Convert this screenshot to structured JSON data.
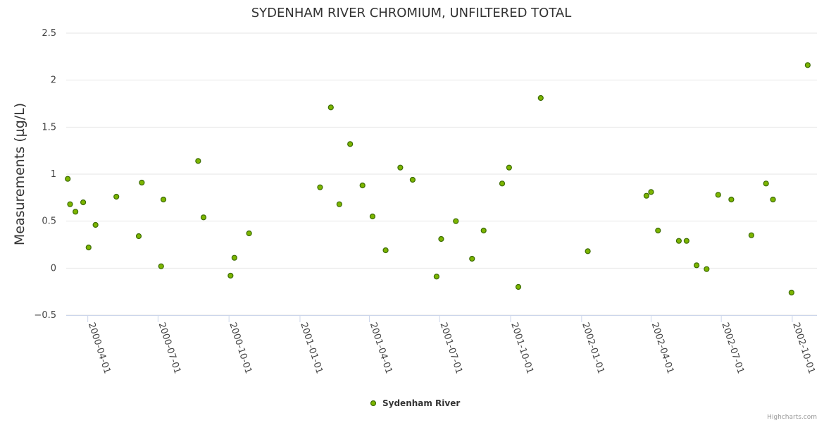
{
  "chart_data": {
    "type": "scatter",
    "title": "SYDENHAM RIVER CHROMIUM, UNFILTERED TOTAL",
    "ylabel": "Measurements (µg/L)",
    "xlabel": "",
    "ylim": [
      -0.5,
      2.5
    ],
    "yticks": [
      -0.5,
      0,
      0.5,
      1,
      1.5,
      2,
      2.5
    ],
    "ytick_labels": [
      "−0.5",
      "0",
      "0.5",
      "1",
      "1.5",
      "2",
      "2.5"
    ],
    "xlim": [
      "2000-03-04",
      "2002-11-02"
    ],
    "xticks": [
      "2000-04-01",
      "2000-07-01",
      "2000-10-01",
      "2001-01-01",
      "2001-04-01",
      "2001-07-01",
      "2001-10-01",
      "2002-01-01",
      "2002-04-01",
      "2002-07-01",
      "2002-10-01"
    ],
    "grid": "horizontal",
    "legend_position": "bottom-center",
    "colors": {
      "marker_fill": "#7cb500",
      "marker_stroke": "#3b6b00",
      "grid": "#e6e6e6",
      "axis": "#ccd6eb"
    },
    "series": [
      {
        "name": "Sydenham River",
        "points": [
          [
            "2000-03-06",
            0.95
          ],
          [
            "2000-03-09",
            0.68
          ],
          [
            "2000-03-16",
            0.6
          ],
          [
            "2000-03-26",
            0.7
          ],
          [
            "2000-04-02",
            0.22
          ],
          [
            "2000-04-11",
            0.46
          ],
          [
            "2000-05-08",
            0.76
          ],
          [
            "2000-06-06",
            0.34
          ],
          [
            "2000-06-10",
            0.91
          ],
          [
            "2000-07-05",
            0.02
          ],
          [
            "2000-07-08",
            0.73
          ],
          [
            "2000-08-22",
            1.14
          ],
          [
            "2000-08-29",
            0.54
          ],
          [
            "2000-10-03",
            -0.08
          ],
          [
            "2000-10-08",
            0.11
          ],
          [
            "2000-10-27",
            0.37
          ],
          [
            "2001-01-27",
            0.86
          ],
          [
            "2001-02-10",
            1.71
          ],
          [
            "2001-02-21",
            0.68
          ],
          [
            "2001-03-07",
            1.32
          ],
          [
            "2001-03-23",
            0.88
          ],
          [
            "2001-04-05",
            0.55
          ],
          [
            "2001-04-22",
            0.19
          ],
          [
            "2001-05-11",
            1.07
          ],
          [
            "2001-05-27",
            0.94
          ],
          [
            "2001-06-27",
            -0.09
          ],
          [
            "2001-07-03",
            0.31
          ],
          [
            "2001-07-22",
            0.5
          ],
          [
            "2001-08-12",
            0.1
          ],
          [
            "2001-08-27",
            0.4
          ],
          [
            "2001-09-20",
            0.9
          ],
          [
            "2001-09-29",
            1.07
          ],
          [
            "2001-10-11",
            -0.2
          ],
          [
            "2001-11-09",
            1.81
          ],
          [
            "2002-01-09",
            0.18
          ],
          [
            "2002-03-26",
            0.77
          ],
          [
            "2002-04-01",
            0.81
          ],
          [
            "2002-04-10",
            0.4
          ],
          [
            "2002-05-07",
            0.29
          ],
          [
            "2002-05-17",
            0.29
          ],
          [
            "2002-05-30",
            0.03
          ],
          [
            "2002-06-12",
            -0.01
          ],
          [
            "2002-06-27",
            0.78
          ],
          [
            "2002-07-14",
            0.73
          ],
          [
            "2002-08-09",
            0.35
          ],
          [
            "2002-08-28",
            0.9
          ],
          [
            "2002-09-06",
            0.73
          ],
          [
            "2002-09-30",
            -0.26
          ],
          [
            "2002-10-21",
            2.16
          ]
        ]
      }
    ]
  },
  "credits": "Highcharts.com"
}
